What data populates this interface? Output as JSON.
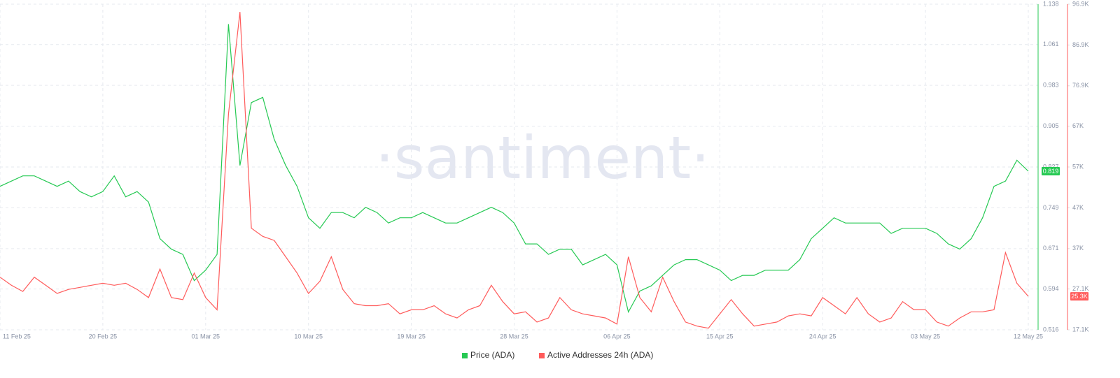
{
  "chart_data": {
    "type": "line",
    "watermark": "·santiment·",
    "x": [
      "2025-02-11",
      "2025-02-12",
      "2025-02-13",
      "2025-02-14",
      "2025-02-15",
      "2025-02-16",
      "2025-02-17",
      "2025-02-18",
      "2025-02-19",
      "2025-02-20",
      "2025-02-21",
      "2025-02-22",
      "2025-02-23",
      "2025-02-24",
      "2025-02-25",
      "2025-02-26",
      "2025-02-27",
      "2025-02-28",
      "2025-03-01",
      "2025-03-02",
      "2025-03-03",
      "2025-03-04",
      "2025-03-05",
      "2025-03-06",
      "2025-03-07",
      "2025-03-08",
      "2025-03-09",
      "2025-03-10",
      "2025-03-11",
      "2025-03-12",
      "2025-03-13",
      "2025-03-14",
      "2025-03-15",
      "2025-03-16",
      "2025-03-17",
      "2025-03-18",
      "2025-03-19",
      "2025-03-20",
      "2025-03-21",
      "2025-03-22",
      "2025-03-23",
      "2025-03-24",
      "2025-03-25",
      "2025-03-26",
      "2025-03-27",
      "2025-03-28",
      "2025-03-29",
      "2025-03-30",
      "2025-03-31",
      "2025-04-01",
      "2025-04-02",
      "2025-04-03",
      "2025-04-04",
      "2025-04-05",
      "2025-04-06",
      "2025-04-07",
      "2025-04-08",
      "2025-04-09",
      "2025-04-10",
      "2025-04-11",
      "2025-04-12",
      "2025-04-13",
      "2025-04-14",
      "2025-04-15",
      "2025-04-16",
      "2025-04-17",
      "2025-04-18",
      "2025-04-19",
      "2025-04-20",
      "2025-04-21",
      "2025-04-22",
      "2025-04-23",
      "2025-04-24",
      "2025-04-25",
      "2025-04-26",
      "2025-04-27",
      "2025-04-28",
      "2025-04-29",
      "2025-04-30",
      "2025-05-01",
      "2025-05-02",
      "2025-05-03",
      "2025-05-04",
      "2025-05-05",
      "2025-05-06",
      "2025-05-07",
      "2025-05-08",
      "2025-05-09",
      "2025-05-10",
      "2025-05-11",
      "2025-05-12"
    ],
    "xlim": [
      "2025-02-11",
      "2025-05-12"
    ],
    "xticks": [
      {
        "value": "2025-02-11",
        "label": "11 Feb 25"
      },
      {
        "value": "2025-02-20",
        "label": "20 Feb 25"
      },
      {
        "value": "2025-03-01",
        "label": "01 Mar 25"
      },
      {
        "value": "2025-03-10",
        "label": "10 Mar 25"
      },
      {
        "value": "2025-03-19",
        "label": "19 Mar 25"
      },
      {
        "value": "2025-03-28",
        "label": "28 Mar 25"
      },
      {
        "value": "2025-04-06",
        "label": "06 Apr 25"
      },
      {
        "value": "2025-04-15",
        "label": "15 Apr 25"
      },
      {
        "value": "2025-04-24",
        "label": "24 Apr 25"
      },
      {
        "value": "2025-05-03",
        "label": "03 May 25"
      },
      {
        "value": "2025-05-12",
        "label": "12 May 25"
      }
    ],
    "ylim": [
      0.516,
      1.138
    ],
    "yticks": [
      0.516,
      0.594,
      0.671,
      0.749,
      0.827,
      0.905,
      0.983,
      1.061,
      1.138
    ],
    "y2lim": [
      17100,
      96900
    ],
    "y2ticks": [
      {
        "value": 17100,
        "label": "17.1K"
      },
      {
        "value": 27100,
        "label": "27.1K"
      },
      {
        "value": 37000,
        "label": "37K"
      },
      {
        "value": 47000,
        "label": "47K"
      },
      {
        "value": 57000,
        "label": "57K"
      },
      {
        "value": 67000,
        "label": "67K"
      },
      {
        "value": 76900,
        "label": "76.9K"
      },
      {
        "value": 86900,
        "label": "86.9K"
      },
      {
        "value": 96900,
        "label": "96.9K"
      }
    ],
    "grid": true,
    "legend": "bottom",
    "series": [
      {
        "name": "Price (ADA)",
        "color": "#26c953",
        "last_value_label": "0.819",
        "values": [
          0.79,
          0.8,
          0.81,
          0.81,
          0.8,
          0.79,
          0.8,
          0.78,
          0.77,
          0.78,
          0.81,
          0.77,
          0.78,
          0.76,
          0.69,
          0.67,
          0.66,
          0.61,
          0.63,
          0.66,
          1.1,
          0.83,
          0.95,
          0.96,
          0.88,
          0.83,
          0.79,
          0.73,
          0.71,
          0.74,
          0.74,
          0.73,
          0.75,
          0.74,
          0.72,
          0.73,
          0.73,
          0.74,
          0.73,
          0.72,
          0.72,
          0.73,
          0.74,
          0.75,
          0.74,
          0.72,
          0.68,
          0.68,
          0.66,
          0.67,
          0.67,
          0.64,
          0.65,
          0.66,
          0.64,
          0.55,
          0.59,
          0.6,
          0.62,
          0.64,
          0.65,
          0.65,
          0.64,
          0.63,
          0.61,
          0.62,
          0.62,
          0.63,
          0.63,
          0.63,
          0.65,
          0.69,
          0.71,
          0.73,
          0.72,
          0.72,
          0.72,
          0.72,
          0.7,
          0.71,
          0.71,
          0.71,
          0.7,
          0.68,
          0.67,
          0.69,
          0.73,
          0.79,
          0.8,
          0.84,
          0.819
        ]
      },
      {
        "name": "Active Addresses 24h (ADA)",
        "color": "#ff5b5b",
        "axis": "y2",
        "last_value_label": "25.3K",
        "values": [
          30000,
          28000,
          26500,
          30000,
          28000,
          26000,
          27000,
          27500,
          28000,
          28500,
          28000,
          28500,
          27000,
          25000,
          32000,
          25000,
          24500,
          31000,
          25000,
          22000,
          70000,
          95000,
          42000,
          40000,
          39000,
          35000,
          31000,
          26000,
          29000,
          35000,
          27000,
          23500,
          23000,
          23000,
          23500,
          21000,
          22000,
          22000,
          23000,
          21000,
          20000,
          22000,
          23000,
          28000,
          24000,
          21000,
          21500,
          19000,
          20000,
          25000,
          22000,
          21000,
          20500,
          20000,
          18500,
          35000,
          25000,
          21500,
          30000,
          24000,
          19000,
          18000,
          17500,
          21000,
          24500,
          21000,
          18000,
          18500,
          19000,
          20500,
          21000,
          20500,
          25000,
          23000,
          21000,
          25000,
          21000,
          19000,
          20000,
          24000,
          22000,
          22000,
          19000,
          18000,
          20000,
          21500,
          21500,
          22000,
          36000,
          28500,
          25300
        ]
      }
    ]
  }
}
